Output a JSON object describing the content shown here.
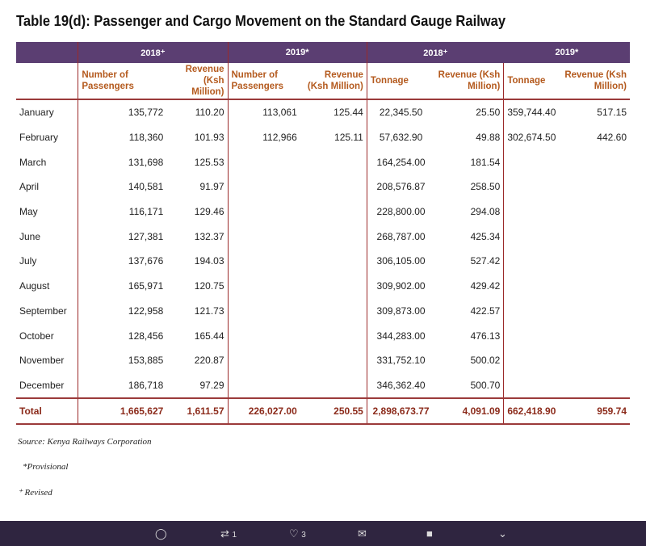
{
  "title": "Table 19(d): Passenger and Cargo Movement on the Standard Gauge Railway",
  "years": [
    "2018⁺",
    "2019*",
    "2018⁺",
    "2019*"
  ],
  "headers": [
    "Number of Passengers",
    "Revenue (Ksh Million)",
    "Number of Passengers",
    "Revenue (Ksh Million)",
    "Tonnage",
    "Revenue (Ksh Million)",
    "Tonnage",
    "Revenue (Ksh Million)"
  ],
  "rows": [
    [
      "January",
      "135,772",
      "110.20",
      "113,061",
      "125.44",
      "22,345.50",
      "25.50",
      "359,744.40",
      "517.15"
    ],
    [
      "February",
      "118,360",
      "101.93",
      "112,966",
      "125.11",
      "57,632.90",
      "49.88",
      "302,674.50",
      "442.60"
    ],
    [
      "March",
      "131,698",
      "125.53",
      "",
      "",
      "164,254.00",
      "181.54",
      "",
      ""
    ],
    [
      "April",
      "140,581",
      "91.97",
      "",
      "",
      "208,576.87",
      "258.50",
      "",
      ""
    ],
    [
      "May",
      "116,171",
      "129.46",
      "",
      "",
      "228,800.00",
      "294.08",
      "",
      ""
    ],
    [
      "June",
      "127,381",
      "132.37",
      "",
      "",
      "268,787.00",
      "425.34",
      "",
      ""
    ],
    [
      "July",
      "137,676",
      "194.03",
      "",
      "",
      "306,105.00",
      "527.42",
      "",
      ""
    ],
    [
      "August",
      "165,971",
      "120.75",
      "",
      "",
      "309,902.00",
      "429.42",
      "",
      ""
    ],
    [
      "September",
      "122,958",
      "121.73",
      "",
      "",
      "309,873.00",
      "422.57",
      "",
      ""
    ],
    [
      "October",
      "128,456",
      "165.44",
      "",
      "",
      "344,283.00",
      "476.13",
      "",
      ""
    ],
    [
      "November",
      "153,885",
      "220.87",
      "",
      "",
      "331,752.10",
      "500.02",
      "",
      ""
    ],
    [
      "December",
      "186,718",
      "97.29",
      "",
      "",
      "346,362.40",
      "500.70",
      "",
      ""
    ]
  ],
  "total": [
    "Total",
    "1,665,627",
    "1,611.57",
    "226,027.00",
    "250.55",
    "2,898,673.77",
    "4,091.09",
    "662,418.90",
    "959.74"
  ],
  "notes": [
    "Source: Kenya Railways Corporation",
    "*Provisional",
    "⁺ Revised"
  ],
  "bar": {
    "retweets": "1",
    "likes": "3"
  }
}
